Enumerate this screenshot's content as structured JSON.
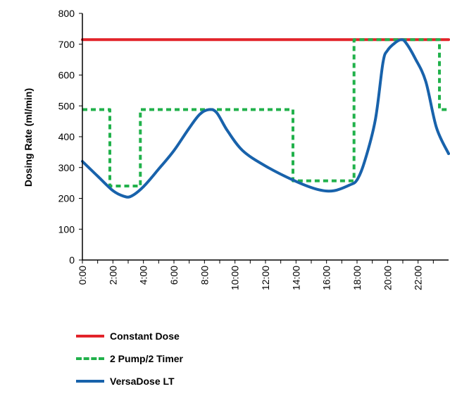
{
  "chart_data": {
    "type": "line",
    "ylabel": "Dosing Rate (ml/min)",
    "xlabel": "",
    "ylim": [
      0,
      800
    ],
    "xlim": [
      0,
      24
    ],
    "yticks": [
      "0",
      "100",
      "200",
      "300",
      "400",
      "500",
      "600",
      "700",
      "800"
    ],
    "xticks": [
      "0:00",
      "2:00",
      "4:00",
      "6:00",
      "8:00",
      "10:00",
      "12:00",
      "14:00",
      "16:00",
      "18:00",
      "20:00",
      "22:00"
    ],
    "legend_position": "bottom",
    "series": [
      {
        "name": "Constant Dose",
        "color": "#e2232a",
        "style": "solid",
        "x": [
          0,
          24
        ],
        "y": [
          715,
          715
        ]
      },
      {
        "name": "2 Pump/2 Timer",
        "color": "#21b14b",
        "style": "dashed",
        "x": [
          0,
          1.8,
          1.8,
          3.8,
          3.8,
          13.8,
          13.8,
          17.8,
          17.8,
          23.4,
          23.4,
          24
        ],
        "y": [
          488,
          488,
          240,
          240,
          488,
          488,
          257,
          257,
          715,
          715,
          488,
          488
        ]
      },
      {
        "name": "VersaDose LT",
        "color": "#1862ab",
        "style": "solid",
        "x": [
          0,
          1,
          2,
          2.7,
          3.2,
          4,
          5,
          6,
          7,
          7.7,
          8.3,
          8.8,
          9.5,
          10.5,
          12,
          14,
          15.5,
          16.5,
          17.5,
          18,
          18.5,
          19.2,
          19.7,
          20,
          20.5,
          20.9,
          21.2,
          21.8,
          22.5,
          23.2,
          24
        ],
        "y": [
          320,
          272,
          225,
          207,
          207,
          238,
          295,
          355,
          428,
          473,
          488,
          478,
          420,
          355,
          305,
          255,
          228,
          225,
          243,
          260,
          320,
          455,
          640,
          680,
          705,
          715,
          705,
          655,
          580,
          430,
          345
        ]
      }
    ]
  }
}
